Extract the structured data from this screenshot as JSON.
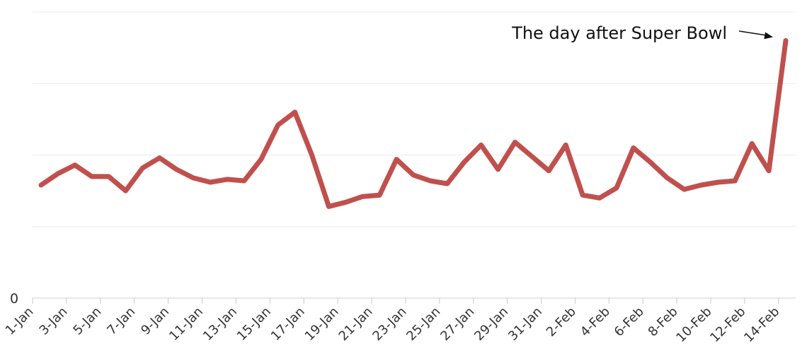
{
  "chart_data": {
    "type": "line",
    "title": "",
    "xlabel": "",
    "ylabel": "",
    "y_tick_labels": [
      "0"
    ],
    "ylim": [
      0,
      10
    ],
    "grid": true,
    "x_tick_labels": [
      "1-Jan",
      "3-Jan",
      "5-Jan",
      "7-Jan",
      "9-Jan",
      "11-Jan",
      "13-Jan",
      "15-Jan",
      "17-Jan",
      "19-Jan",
      "21-Jan",
      "23-Jan",
      "25-Jan",
      "27-Jan",
      "29-Jan",
      "31-Jan",
      "2-Feb",
      "4-Feb",
      "6-Feb",
      "8-Feb",
      "10-Feb",
      "12-Feb",
      "14-Feb"
    ],
    "x": [
      "1-Jan",
      "2-Jan",
      "3-Jan",
      "4-Jan",
      "5-Jan",
      "6-Jan",
      "7-Jan",
      "8-Jan",
      "9-Jan",
      "10-Jan",
      "11-Jan",
      "12-Jan",
      "13-Jan",
      "14-Jan",
      "15-Jan",
      "16-Jan",
      "17-Jan",
      "18-Jan",
      "19-Jan",
      "20-Jan",
      "21-Jan",
      "22-Jan",
      "23-Jan",
      "24-Jan",
      "25-Jan",
      "26-Jan",
      "27-Jan",
      "28-Jan",
      "29-Jan",
      "30-Jan",
      "31-Jan",
      "1-Feb",
      "2-Feb",
      "3-Feb",
      "4-Feb",
      "5-Feb",
      "6-Feb",
      "7-Feb",
      "8-Feb",
      "9-Feb",
      "10-Feb",
      "11-Feb",
      "12-Feb",
      "13-Feb",
      "14-Feb"
    ],
    "series": [
      {
        "color": "#c0504d",
        "values": [
          3.95,
          4.35,
          4.65,
          4.25,
          4.25,
          3.75,
          4.55,
          4.9,
          4.5,
          4.2,
          4.05,
          4.15,
          4.1,
          4.85,
          6.05,
          6.5,
          5.0,
          3.2,
          3.35,
          3.55,
          3.6,
          4.85,
          4.3,
          4.1,
          4.0,
          4.75,
          5.35,
          4.5,
          5.45,
          4.95,
          4.45,
          5.35,
          3.6,
          3.5,
          3.85,
          5.25,
          4.75,
          4.2,
          3.8,
          3.95,
          4.05,
          4.1,
          5.4,
          4.45,
          9.0
        ]
      }
    ],
    "annotation": {
      "text": "The day after Super Bowl",
      "target": "14-Feb"
    }
  }
}
